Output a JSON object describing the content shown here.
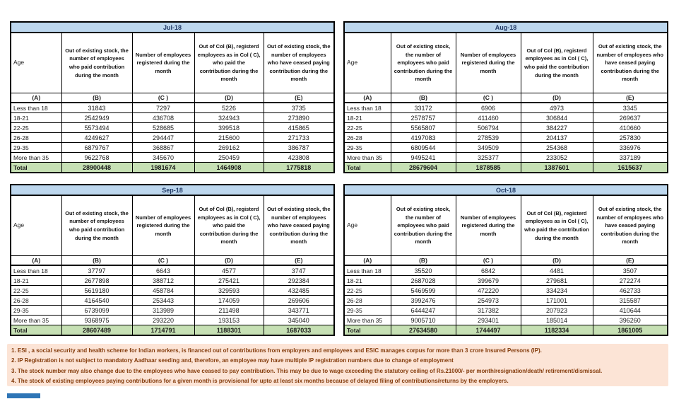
{
  "colors": {
    "title_fill": "#bdd7ee",
    "title_text": "#1f3864",
    "total_fill": "#c6e0b4",
    "note_bg": "#fce4d6",
    "note_text": "#843c0c",
    "border": "#000000",
    "tab_blue": "#2e75b6"
  },
  "header_labels": {
    "age": "Age",
    "b": "Out of existing stock, the number of employees who paid contribution during the month",
    "c": "Number of employees registered during the month",
    "d": "Out of Col (B), registerd employees as in Col ( C), who paid the contribution during the month",
    "e": "Out of existing stock, the number of  employees who have ceased paying contribution during the month"
  },
  "col_letters": [
    "(A)",
    "(B)",
    "(C )",
    "(D)",
    "(E)"
  ],
  "tables": [
    {
      "month": "Jul-18",
      "variant": 1,
      "rows": [
        [
          "Less than 18",
          "31843",
          "7297",
          "5226",
          "3735"
        ],
        [
          "18-21",
          "2542949",
          "436708",
          "324943",
          "273890"
        ],
        [
          "22-25",
          "5573494",
          "528685",
          "399518",
          "415865"
        ],
        [
          "26-28",
          "4249627",
          "294447",
          "215600",
          "271733"
        ],
        [
          "29-35",
          "6879767",
          "368867",
          "269162",
          "386787"
        ],
        [
          "More than 35",
          "9622768",
          "345670",
          "250459",
          "423808"
        ],
        [
          "Total",
          "28900448",
          "1981674",
          "1464908",
          "1775818"
        ]
      ]
    },
    {
      "month": "Aug-18",
      "variant": 2,
      "rows": [
        [
          "Less than 18",
          "33172",
          "6906",
          "4973",
          "3345"
        ],
        [
          "18-21",
          "2578757",
          "411460",
          "306844",
          "269637"
        ],
        [
          "22-25",
          "5565807",
          "506794",
          "384227",
          "410660"
        ],
        [
          "26-28",
          "4197083",
          "278539",
          "204137",
          "257830"
        ],
        [
          "29-35",
          "6809544",
          "349509",
          "254368",
          "336976"
        ],
        [
          "More than 35",
          "9495241",
          "325377",
          "233052",
          "337189"
        ],
        [
          "Total",
          "28679604",
          "1878585",
          "1387601",
          "1615637"
        ]
      ]
    },
    {
      "month": "Sep-18",
      "variant": 1,
      "rows": [
        [
          "Less than 18",
          "37797",
          "6643",
          "4577",
          "3747"
        ],
        [
          "18-21",
          "2677898",
          "388712",
          "275421",
          "292384"
        ],
        [
          "22-25",
          "5619180",
          "458784",
          "329593",
          "432485"
        ],
        [
          "26-28",
          "4164540",
          "253443",
          "174059",
          "269606"
        ],
        [
          "29-35",
          "6739099",
          "313989",
          "211498",
          "343771"
        ],
        [
          "More than 35",
          "9368975",
          "293220",
          "193153",
          "345040"
        ],
        [
          "Total",
          "28607489",
          "1714791",
          "1188301",
          "1687033"
        ]
      ]
    },
    {
      "month": "Oct-18",
      "variant": 2,
      "rows": [
        [
          "Less than 18",
          "35520",
          "6842",
          "4481",
          "3507"
        ],
        [
          "18-21",
          "2687028",
          "399679",
          "279681",
          "272274"
        ],
        [
          "22-25",
          "5469599",
          "472220",
          "334234",
          "462733"
        ],
        [
          "26-28",
          "3992476",
          "254973",
          "171001",
          "315587"
        ],
        [
          "29-35",
          "6444247",
          "317382",
          "207923",
          "410644"
        ],
        [
          "More than 35",
          "9005710",
          "293401",
          "185014",
          "396260"
        ],
        [
          "Total",
          "27634580",
          "1744497",
          "1182334",
          "1861005"
        ]
      ]
    }
  ],
  "footnotes": [
    "1. ESI , a social security and health scheme for Indian workers, is financed out of contributions from employers and employees and ESIC manages corpus for more than 3 crore Insured Persons (IP).",
    "2. IP Registration is not subject to mandatory Aadhaar seeding and, therefore, an employee may have multiple IP registration numbers due to change of employment",
    "3. The stock number may also change due to the employees who have ceased to pay contribution. This may  be due to wage exceeding the statutory ceiling of  Rs.21000/- per month/resignation/death/ retirement/dismissal.",
    "4. The stock of existing employees paying contributions for a given month is provisional for upto at least six months because of delayed filing of contributions/returns by the employers."
  ]
}
